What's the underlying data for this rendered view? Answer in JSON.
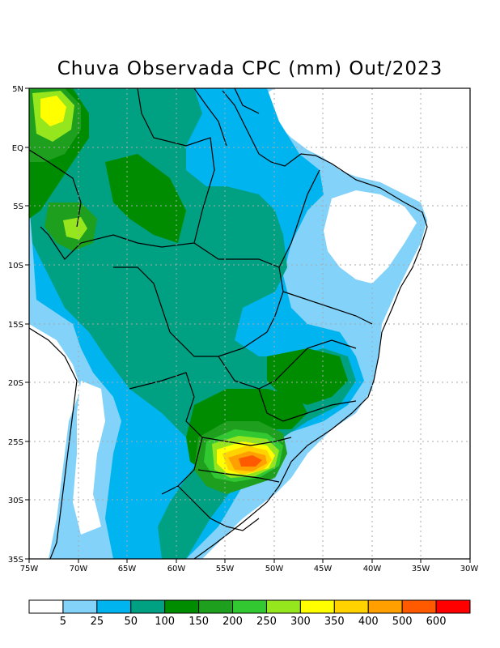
{
  "title": "Chuva Observada CPC (mm) Out/2023",
  "lat_labels": [
    "5N",
    "EQ",
    "5S",
    "10S",
    "15S",
    "20S",
    "25S",
    "30S",
    "35S"
  ],
  "lon_labels": [
    "75W",
    "70W",
    "65W",
    "60W",
    "55W",
    "50W",
    "45W",
    "40W",
    "35W",
    "30W"
  ],
  "colorbar": {
    "colors": [
      "#ffffff",
      "#82d2fa",
      "#00b4f0",
      "#00a082",
      "#008c00",
      "#1ea01e",
      "#32c832",
      "#96e61e",
      "#ffff00",
      "#ffd200",
      "#ffa000",
      "#ff5a00",
      "#ff0000"
    ],
    "labels": [
      "5",
      "25",
      "50",
      "100",
      "150",
      "200",
      "250",
      "300",
      "350",
      "400",
      "500",
      "600"
    ]
  }
}
